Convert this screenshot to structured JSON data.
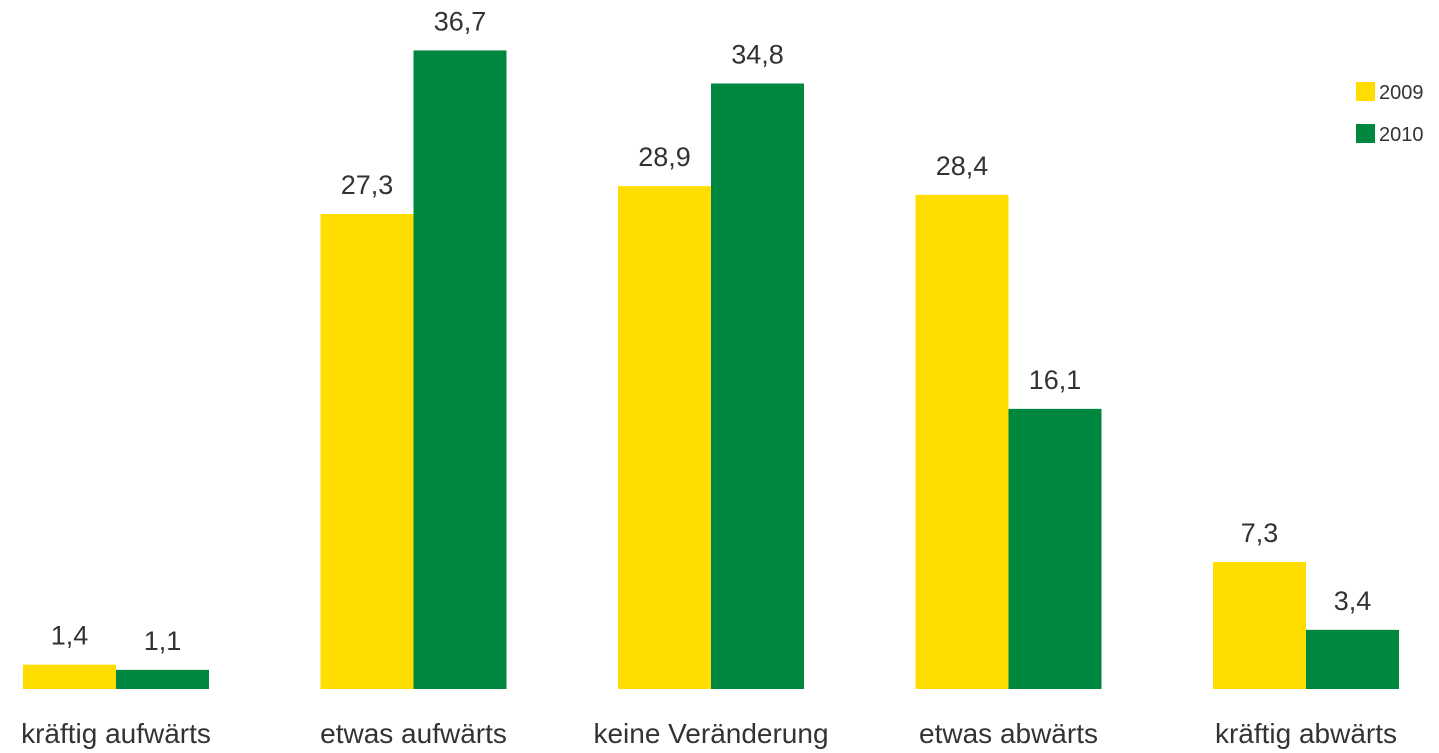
{
  "chart_data": {
    "type": "bar",
    "categories": [
      "kräftig aufwärts",
      "etwas aufwärts",
      "keine Veränderung",
      "etwas abwärts",
      "kräftig abwärts"
    ],
    "series": [
      {
        "name": "2009",
        "color": "#FFDD00",
        "values": [
          1.4,
          27.3,
          28.9,
          28.4,
          7.3
        ],
        "labels": [
          "1,4",
          "27,3",
          "28,9",
          "28,4",
          "7,3"
        ]
      },
      {
        "name": "2010",
        "color": "#00873F",
        "values": [
          1.1,
          36.7,
          34.8,
          16.1,
          3.4
        ],
        "labels": [
          "1,1",
          "36,7",
          "34,8",
          "16,1",
          "3,4"
        ]
      }
    ],
    "ylim": [
      0,
      40
    ],
    "grid": false,
    "legend_position": "top-right"
  }
}
